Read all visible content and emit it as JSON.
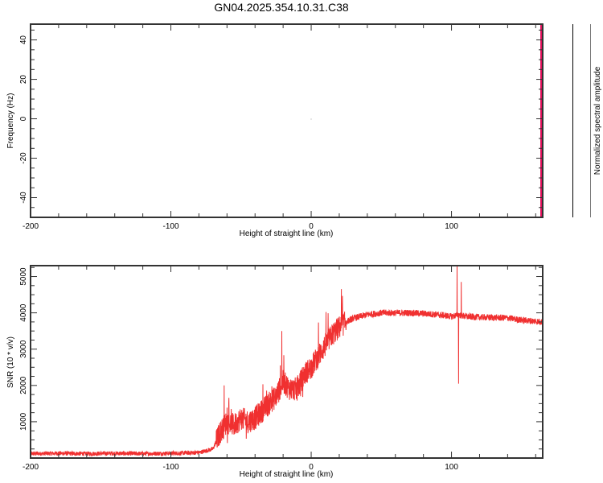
{
  "title": "GN04.2025.354.10.31.C38",
  "colorbar_label": "Normalized spectral amplitude",
  "chart_data": [
    {
      "type": "heatmap",
      "xlabel": "Height of straight line (km)",
      "ylabel": "Frequency (Hz)",
      "xlim": [
        -200,
        165
      ],
      "ylim": [
        -50,
        48
      ],
      "xticks": [
        -200,
        -100,
        0,
        100
      ],
      "yticks": [
        -40,
        -20,
        0,
        20,
        40
      ],
      "highlight_color": "#e0105a",
      "note_marks": [
        {
          "x": 0,
          "y": 0
        }
      ]
    },
    {
      "type": "line",
      "xlabel": "Height of straight line (km)",
      "ylabel": "SNR (10 * v/v)",
      "xlim": [
        -200,
        165
      ],
      "ylim": [
        0,
        5300
      ],
      "xticks": [
        -200,
        -100,
        0,
        100
      ],
      "yticks": [
        1000,
        2000,
        3000,
        4000,
        5000
      ],
      "color": "#f03030",
      "series": [
        {
          "name": "SNR",
          "x": [
            -200,
            -180,
            -160,
            -140,
            -120,
            -100,
            -80,
            -70,
            -65,
            -60,
            -55,
            -50,
            -45,
            -40,
            -35,
            -30,
            -25,
            -20,
            -15,
            -10,
            -5,
            0,
            5,
            10,
            15,
            20,
            25,
            30,
            40,
            50,
            60,
            70,
            80,
            90,
            100,
            105,
            110,
            120,
            130,
            140,
            150,
            165
          ],
          "y": [
            120,
            130,
            120,
            130,
            120,
            130,
            150,
            250,
            700,
            1000,
            900,
            1100,
            1000,
            1100,
            1300,
            1500,
            1700,
            2100,
            1900,
            1900,
            2300,
            2500,
            2800,
            3100,
            3400,
            3600,
            3750,
            3850,
            3950,
            4000,
            4000,
            4000,
            3980,
            3950,
            3900,
            3950,
            3900,
            3880,
            3870,
            3860,
            3800,
            3750
          ],
          "spikes": [
            {
              "x": -62,
              "y": 2000
            },
            {
              "x": -21,
              "y": 3500
            },
            {
              "x": 104,
              "y": 5300
            },
            {
              "x": 105,
              "y": 2050
            },
            {
              "x": 107,
              "y": 4850
            }
          ]
        }
      ]
    }
  ]
}
